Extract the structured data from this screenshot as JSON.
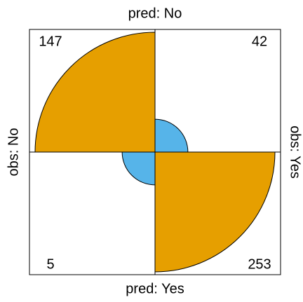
{
  "chart_data": {
    "type": "fourfold",
    "top_label": "pred: No",
    "bottom_label": "pred: Yes",
    "left_label": "obs: No",
    "right_label": "obs: Yes",
    "cells": [
      {
        "quadrant": "top-left",
        "value": 147,
        "color": "#E69F00"
      },
      {
        "quadrant": "top-right",
        "value": 42,
        "color": "#56B4E9"
      },
      {
        "quadrant": "bottom-left",
        "value": 5,
        "color": "#56B4E9"
      },
      {
        "quadrant": "bottom-right",
        "value": 253,
        "color": "#E69F00"
      }
    ]
  }
}
